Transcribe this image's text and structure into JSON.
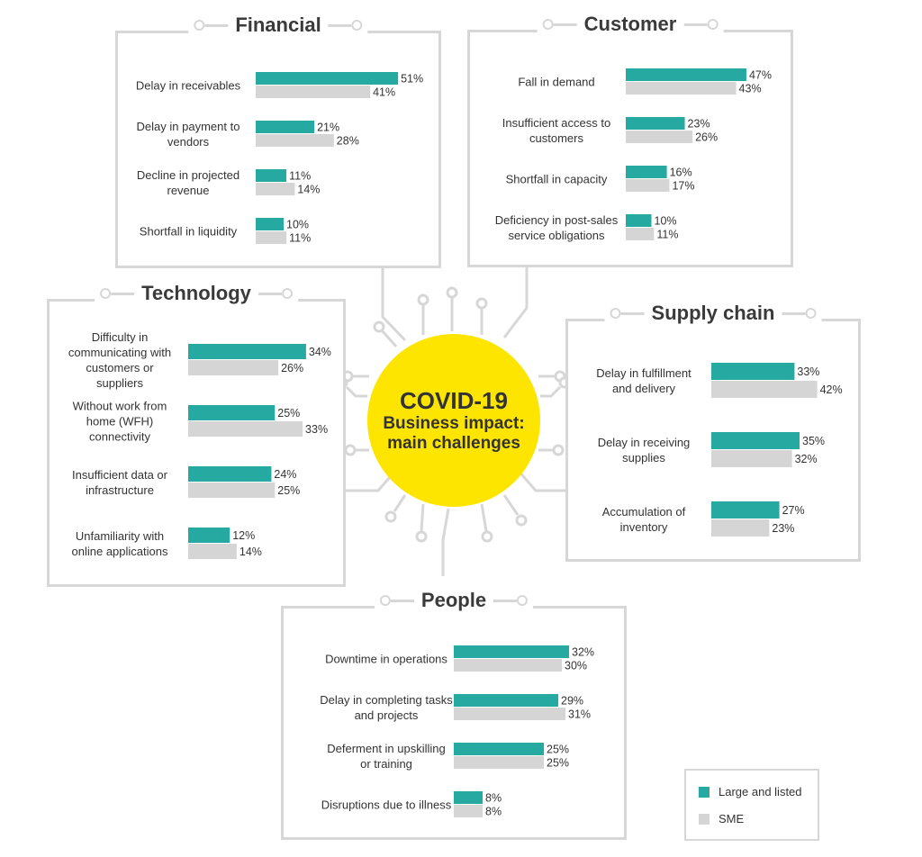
{
  "colors": {
    "large": "#26a9a0",
    "sme": "#d5d5d5",
    "center": "#fde500",
    "border": "#d7d7d7"
  },
  "center": {
    "title": "COVID-19",
    "subtitle_1": "Business impact:",
    "subtitle_2": "main challenges"
  },
  "legend": {
    "large_label": "Large and listed",
    "sme_label": "SME"
  },
  "chart_data": [
    {
      "type": "bar",
      "title": "Financial",
      "categories": [
        "Delay in receivables",
        "Delay in payment to vendors",
        "Decline in projected revenue",
        "Shortfall in liquidity"
      ],
      "label_lines": [
        [
          "Delay in receivables"
        ],
        [
          "Delay in payment to",
          "vendors"
        ],
        [
          "Decline in projected",
          "revenue"
        ],
        [
          "Shortfall in liquidity"
        ]
      ],
      "series": [
        {
          "name": "Large and listed",
          "values": [
            51,
            21,
            11,
            10
          ]
        },
        {
          "name": "SME",
          "values": [
            41,
            28,
            14,
            11
          ]
        }
      ]
    },
    {
      "type": "bar",
      "title": "Customer",
      "categories": [
        "Fall in demand",
        "Insufficient access to customers",
        "Shortfall in capacity",
        "Deficiency in post-sales service obligations"
      ],
      "label_lines": [
        [
          "Fall in demand"
        ],
        [
          "Insufficient access to",
          "customers"
        ],
        [
          "Shortfall in capacity"
        ],
        [
          "Deficiency in post-sales",
          "service obligations"
        ]
      ],
      "series": [
        {
          "name": "Large and listed",
          "values": [
            47,
            23,
            16,
            10
          ]
        },
        {
          "name": "SME",
          "values": [
            43,
            26,
            17,
            11
          ]
        }
      ]
    },
    {
      "type": "bar",
      "title": "Technology",
      "categories": [
        "Difficulty in communicating with customers or suppliers",
        "Without work from home (WFH) connectivity",
        "Insufficient data or infrastructure",
        "Unfamiliarity with online applications"
      ],
      "label_lines": [
        [
          "Difficulty in",
          "communicating with",
          "customers or",
          "suppliers"
        ],
        [
          "Without work from",
          "home (WFH)",
          "connectivity"
        ],
        [
          "Insufficient data or",
          "infrastructure"
        ],
        [
          "Unfamiliarity with",
          "online applications"
        ]
      ],
      "series": [
        {
          "name": "Large and listed",
          "values": [
            34,
            25,
            24,
            12
          ]
        },
        {
          "name": "SME",
          "values": [
            26,
            33,
            25,
            14
          ]
        }
      ]
    },
    {
      "type": "bar",
      "title": "Supply chain",
      "categories": [
        "Delay in fulfillment and delivery",
        "Delay in receiving supplies",
        "Accumulation of inventory"
      ],
      "label_lines": [
        [
          "Delay in fulfillment",
          "and delivery"
        ],
        [
          "Delay in receiving",
          "supplies"
        ],
        [
          "Accumulation of",
          "inventory"
        ]
      ],
      "series": [
        {
          "name": "Large and listed",
          "values": [
            33,
            35,
            27
          ]
        },
        {
          "name": "SME",
          "values": [
            42,
            32,
            23
          ]
        }
      ]
    },
    {
      "type": "bar",
      "title": "People",
      "categories": [
        "Downtime in operations",
        "Delay in completing tasks and projects",
        "Deferment in upskilling or training",
        "Disruptions due to illness"
      ],
      "label_lines": [
        [
          "Downtime in operations"
        ],
        [
          "Delay in completing tasks",
          "and projects"
        ],
        [
          "Deferment in upskilling",
          "or training"
        ],
        [
          "Disruptions due to illness"
        ]
      ],
      "series": [
        {
          "name": "Large and listed",
          "values": [
            32,
            29,
            25,
            8
          ]
        },
        {
          "name": "SME",
          "values": [
            30,
            31,
            25,
            8
          ]
        }
      ]
    }
  ]
}
